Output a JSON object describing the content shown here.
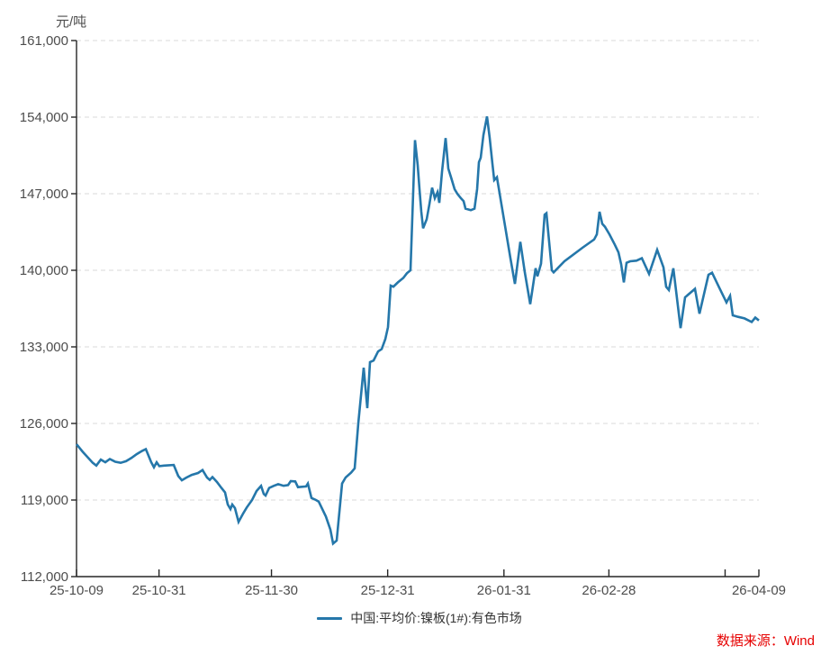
{
  "unit_label": "元/吨",
  "source_note": "数据来源：Wind",
  "legend": {
    "series_label": "中国:平均价:镍板(1#):有色市场"
  },
  "colors": {
    "line": "#2577aa",
    "grid": "#d9d9d9",
    "axis": "#262626",
    "tick_label": "#4d4d4d",
    "legend_text": "#333333",
    "source_text": "#e60000",
    "background": "#ffffff"
  },
  "chart_data": {
    "type": "line",
    "title": "",
    "xlabel": "",
    "ylabel": "元/吨",
    "grid": "dashed-horizontal",
    "legend_position": "bottom-center",
    "x_axis": {
      "type": "time",
      "start": "25-10-09",
      "end": "26-04-09",
      "ticks": [
        {
          "label": "25-10-09",
          "t": 0
        },
        {
          "label": "25-10-31",
          "t": 0.1209
        },
        {
          "label": "25-11-30",
          "t": 0.2857
        },
        {
          "label": "25-12-31",
          "t": 0.456
        },
        {
          "label": "26-01-31",
          "t": 0.6264
        },
        {
          "label": "26-02-28",
          "t": 0.7802
        },
        {
          "label": "",
          "t": 0.9505
        },
        {
          "label": "26-04-09",
          "t": 1
        }
      ]
    },
    "y_axis": {
      "min": 112000,
      "max": 161000,
      "step": 7000,
      "tick_labels": [
        "161,000",
        "154,000",
        "147,000",
        "140,000",
        "133,000",
        "126,000",
        "119,000",
        "112,000"
      ],
      "unit": "元/吨"
    },
    "series": [
      {
        "name": "中国:平均价:镍板(1#):有色市场",
        "color": "#2577aa",
        "points": [
          [
            0.0,
            124100
          ],
          [
            0.0092,
            123400
          ],
          [
            0.0237,
            122400
          ],
          [
            0.029,
            122150
          ],
          [
            0.0356,
            122700
          ],
          [
            0.0422,
            122450
          ],
          [
            0.0488,
            122750
          ],
          [
            0.0567,
            122500
          ],
          [
            0.0646,
            122400
          ],
          [
            0.0726,
            122550
          ],
          [
            0.0805,
            122850
          ],
          [
            0.0884,
            123200
          ],
          [
            0.0963,
            123500
          ],
          [
            0.1016,
            123650
          ],
          [
            0.1095,
            122450
          ],
          [
            0.1134,
            122000
          ],
          [
            0.1174,
            122450
          ],
          [
            0.1214,
            122100
          ],
          [
            0.128,
            122150
          ],
          [
            0.1425,
            122200
          ],
          [
            0.1491,
            121200
          ],
          [
            0.1544,
            120800
          ],
          [
            0.161,
            121050
          ],
          [
            0.1689,
            121300
          ],
          [
            0.1781,
            121470
          ],
          [
            0.1847,
            121740
          ],
          [
            0.1913,
            121060
          ],
          [
            0.1953,
            120840
          ],
          [
            0.1992,
            121100
          ],
          [
            0.2058,
            120650
          ],
          [
            0.2124,
            120100
          ],
          [
            0.2177,
            119690
          ],
          [
            0.2216,
            118600
          ],
          [
            0.2256,
            118180
          ],
          [
            0.2282,
            118590
          ],
          [
            0.2322,
            118260
          ],
          [
            0.2375,
            117000
          ],
          [
            0.2441,
            117760
          ],
          [
            0.2493,
            118310
          ],
          [
            0.2573,
            119000
          ],
          [
            0.2639,
            119820
          ],
          [
            0.2705,
            120290
          ],
          [
            0.2744,
            119550
          ],
          [
            0.2771,
            119410
          ],
          [
            0.2823,
            120100
          ],
          [
            0.2889,
            120290
          ],
          [
            0.2955,
            120450
          ],
          [
            0.3034,
            120300
          ],
          [
            0.31,
            120370
          ],
          [
            0.314,
            120730
          ],
          [
            0.3206,
            120700
          ],
          [
            0.3245,
            120180
          ],
          [
            0.3364,
            120240
          ],
          [
            0.339,
            120510
          ],
          [
            0.3443,
            119190
          ],
          [
            0.3509,
            119000
          ],
          [
            0.3549,
            118860
          ],
          [
            0.3654,
            117490
          ],
          [
            0.372,
            116300
          ],
          [
            0.376,
            115020
          ],
          [
            0.3813,
            115290
          ],
          [
            0.3892,
            120510
          ],
          [
            0.3945,
            121070
          ],
          [
            0.4024,
            121500
          ],
          [
            0.4076,
            121900
          ],
          [
            0.4129,
            126000
          ],
          [
            0.4208,
            131100
          ],
          [
            0.4261,
            127400
          ],
          [
            0.4301,
            131600
          ],
          [
            0.4354,
            131760
          ],
          [
            0.442,
            132580
          ],
          [
            0.4472,
            132800
          ],
          [
            0.4525,
            133700
          ],
          [
            0.4565,
            134800
          ],
          [
            0.4604,
            138600
          ],
          [
            0.4644,
            138500
          ],
          [
            0.471,
            138900
          ],
          [
            0.4789,
            139300
          ],
          [
            0.4842,
            139730
          ],
          [
            0.4895,
            140000
          ],
          [
            0.496,
            151900
          ],
          [
            0.5,
            149600
          ],
          [
            0.5026,
            147400
          ],
          [
            0.5053,
            145350
          ],
          [
            0.5079,
            143840
          ],
          [
            0.5132,
            144670
          ],
          [
            0.5172,
            146040
          ],
          [
            0.5211,
            147550
          ],
          [
            0.5251,
            146590
          ],
          [
            0.529,
            147140
          ],
          [
            0.5317,
            146170
          ],
          [
            0.5356,
            149000
          ],
          [
            0.5409,
            152080
          ],
          [
            0.5448,
            149300
          ],
          [
            0.5488,
            148510
          ],
          [
            0.5541,
            147410
          ],
          [
            0.5581,
            147000
          ],
          [
            0.5633,
            146590
          ],
          [
            0.5673,
            146320
          ],
          [
            0.57,
            145630
          ],
          [
            0.5779,
            145490
          ],
          [
            0.5832,
            145630
          ],
          [
            0.5871,
            147410
          ],
          [
            0.5897,
            149880
          ],
          [
            0.5924,
            150290
          ],
          [
            0.5963,
            152350
          ],
          [
            0.6016,
            154060
          ],
          [
            0.6055,
            152080
          ],
          [
            0.6095,
            149740
          ],
          [
            0.6121,
            148240
          ],
          [
            0.6161,
            148510
          ],
          [
            0.6227,
            146040
          ],
          [
            0.6293,
            143570
          ],
          [
            0.6359,
            141100
          ],
          [
            0.6425,
            138760
          ],
          [
            0.6504,
            142600
          ],
          [
            0.657,
            139800
          ],
          [
            0.6649,
            136900
          ],
          [
            0.6728,
            140190
          ],
          [
            0.6755,
            139450
          ],
          [
            0.6808,
            140600
          ],
          [
            0.686,
            145080
          ],
          [
            0.6887,
            145210
          ],
          [
            0.6966,
            140000
          ],
          [
            0.6992,
            139810
          ],
          [
            0.715,
            140820
          ],
          [
            0.7414,
            142060
          ],
          [
            0.7586,
            142820
          ],
          [
            0.7625,
            143290
          ],
          [
            0.7665,
            145350
          ],
          [
            0.7704,
            144250
          ],
          [
            0.7744,
            143980
          ],
          [
            0.781,
            143290
          ],
          [
            0.7889,
            142330
          ],
          [
            0.7942,
            141650
          ],
          [
            0.7981,
            140550
          ],
          [
            0.8021,
            138900
          ],
          [
            0.8061,
            140680
          ],
          [
            0.8113,
            140820
          ],
          [
            0.8206,
            140880
          ],
          [
            0.8285,
            141100
          ],
          [
            0.8391,
            139670
          ],
          [
            0.8509,
            141870
          ],
          [
            0.8602,
            140270
          ],
          [
            0.8641,
            138490
          ],
          [
            0.8681,
            138200
          ],
          [
            0.8747,
            140180
          ],
          [
            0.8852,
            134710
          ],
          [
            0.8918,
            137530
          ],
          [
            0.9063,
            138300
          ],
          [
            0.9129,
            136030
          ],
          [
            0.9261,
            139590
          ],
          [
            0.9314,
            139780
          ],
          [
            0.942,
            138410
          ],
          [
            0.9525,
            137060
          ],
          [
            0.9578,
            137670
          ],
          [
            0.9617,
            135880
          ],
          [
            0.9697,
            135740
          ],
          [
            0.9789,
            135600
          ],
          [
            0.9894,
            135270
          ],
          [
            0.9947,
            135680
          ],
          [
            1.0,
            135410
          ]
        ]
      }
    ]
  }
}
